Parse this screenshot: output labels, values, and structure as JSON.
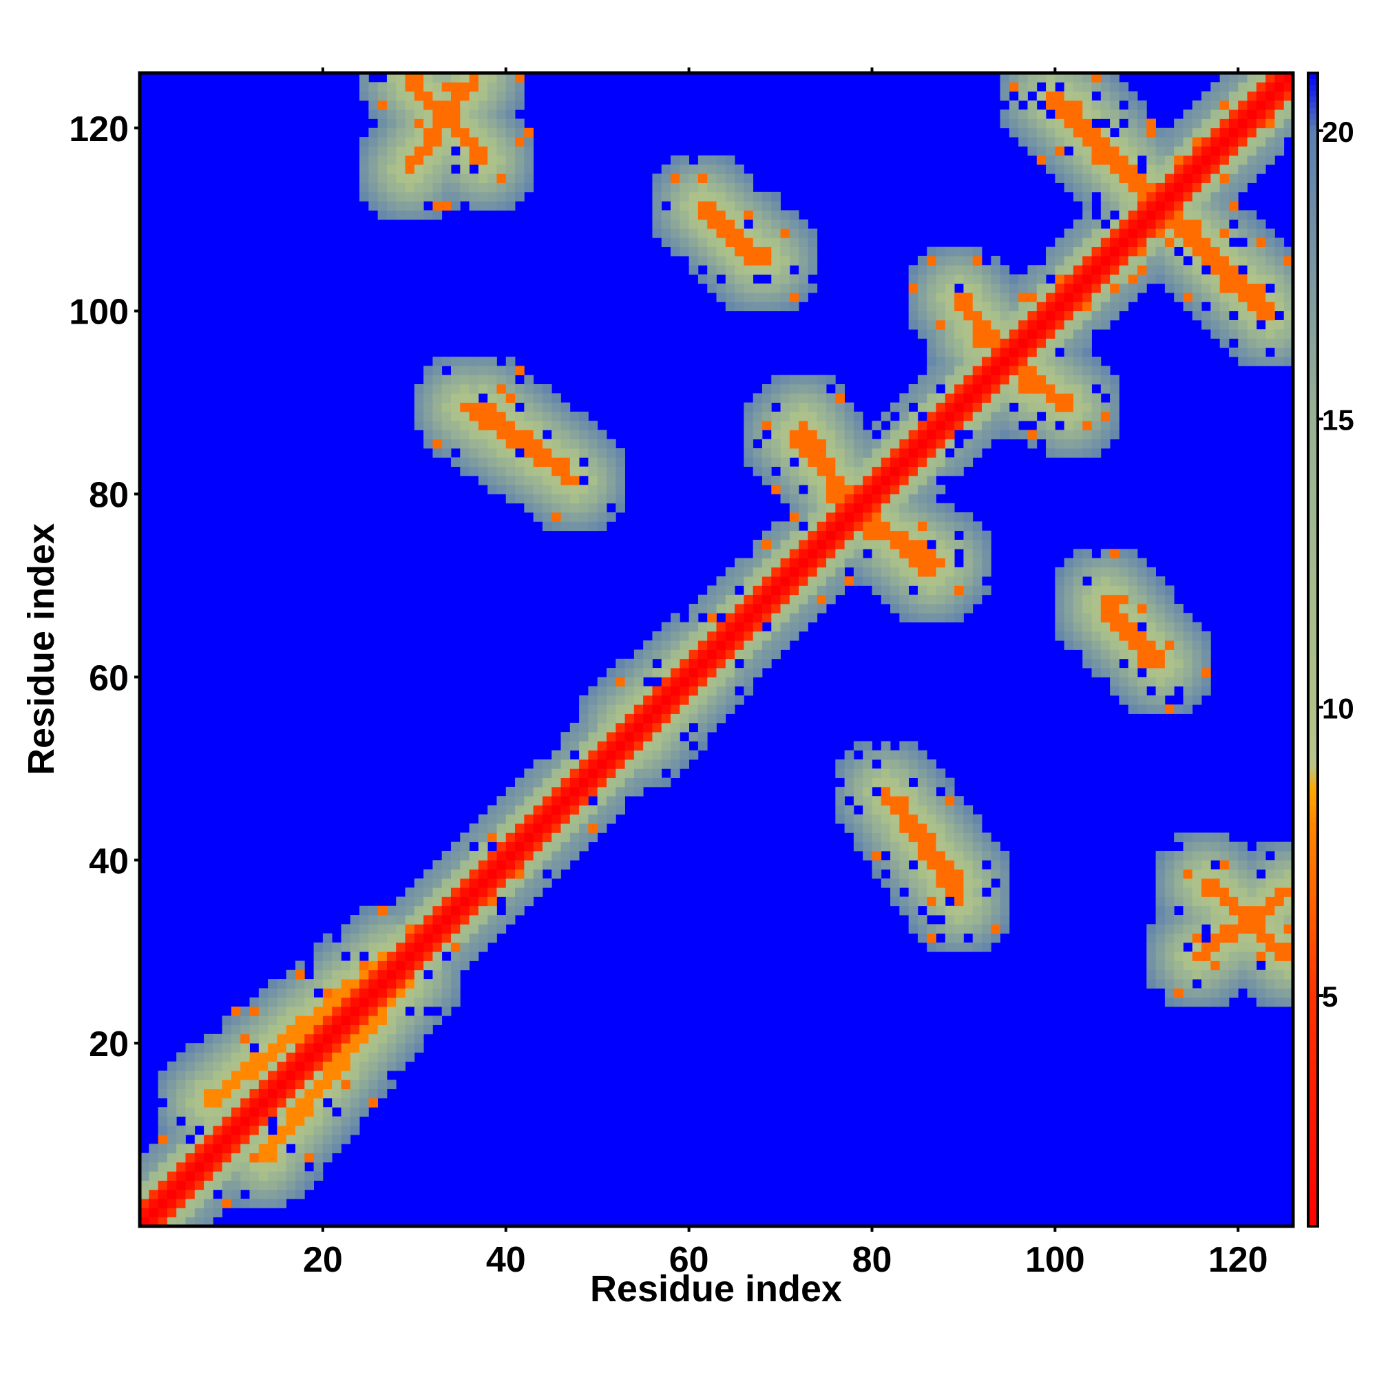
{
  "chart_data": {
    "type": "heatmap",
    "title": "",
    "xlabel": "Residue index",
    "ylabel": "Residue index",
    "n_residues": 126,
    "x_range": [
      1,
      126
    ],
    "y_range": [
      1,
      126
    ],
    "x_ticks": [
      20,
      40,
      60,
      80,
      100,
      120
    ],
    "y_ticks": [
      20,
      40,
      60,
      80,
      100,
      120
    ],
    "colorbar": {
      "ticks": [
        5,
        10,
        15,
        20
      ],
      "range": [
        1,
        21
      ],
      "colors": [
        {
          "value": 1,
          "color": "#ff0000"
        },
        {
          "value": 5,
          "color": "#ff3300"
        },
        {
          "value": 8,
          "color": "#ff8800"
        },
        {
          "value": 8.6,
          "color": "#ffaa00"
        },
        {
          "value": 9,
          "color": "#b8c48c"
        },
        {
          "value": 11,
          "color": "#a9bf8a"
        },
        {
          "value": 15,
          "color": "#99b294"
        },
        {
          "value": 20,
          "color": "#5c7fb0"
        },
        {
          "value": 21,
          "color": "#0000ff"
        }
      ]
    },
    "background_color": "#0000ff",
    "cutoff_value": 21,
    "contact_features": [
      {
        "kind": "diagonal",
        "from": 1,
        "to": 126,
        "value": 1
      },
      {
        "kind": "band",
        "x": [
          30,
          38
        ],
        "y": [
          126,
          117
        ],
        "value": 7
      },
      {
        "kind": "band",
        "x": [
          62,
          68
        ],
        "y": [
          112,
          106
        ],
        "value": 7
      },
      {
        "kind": "band",
        "x": [
          102,
          112
        ],
        "y": [
          123,
          112
        ],
        "value": 7
      },
      {
        "kind": "band",
        "x": [
          112,
          124
        ],
        "y": [
          112,
          100
        ],
        "value": 7
      },
      {
        "kind": "band",
        "x": [
          36,
          48
        ],
        "y": [
          90,
          82
        ],
        "value": 7
      },
      {
        "kind": "band",
        "x": [
          72,
          78
        ],
        "y": [
          87,
          80
        ],
        "value": 7
      },
      {
        "kind": "band",
        "x": [
          79,
          88
        ],
        "y": [
          78,
          73
        ],
        "value": 7
      },
      {
        "kind": "band",
        "x": [
          92,
          102
        ],
        "y": [
          98,
          90
        ],
        "value": 7
      },
      {
        "kind": "band",
        "x": [
          106,
          112
        ],
        "y": [
          69,
          62
        ],
        "value": 7
      },
      {
        "kind": "band",
        "x": [
          83,
          90
        ],
        "y": [
          47,
          38
        ],
        "value": 7
      },
      {
        "kind": "band",
        "x": [
          116,
          126
        ],
        "y": [
          30,
          37
        ],
        "value": 7
      },
      {
        "kind": "band",
        "x": [
          54,
          62
        ],
        "y": [
          55,
          62
        ],
        "value": 7
      },
      {
        "kind": "band",
        "x": [
          8,
          28
        ],
        "y": [
          14,
          30
        ],
        "value": 8
      }
    ]
  }
}
